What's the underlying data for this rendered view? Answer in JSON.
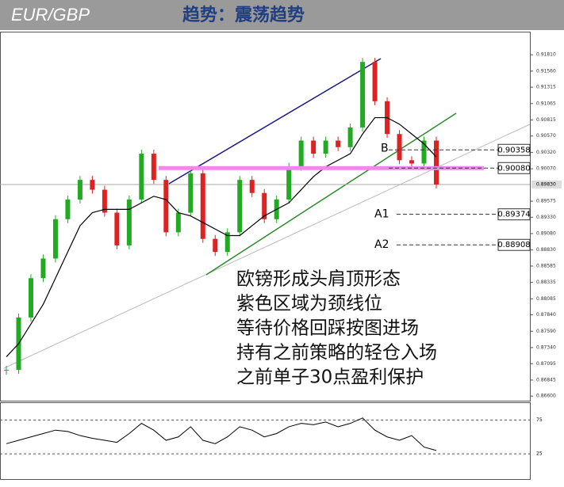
{
  "header": {
    "symbol": "EUR/GBP",
    "title": "趋势：震荡趋势"
  },
  "chart_data": {
    "type": "candlestick",
    "closes": [
      0.87,
      0.878,
      0.884,
      0.887,
      0.893,
      0.896,
      0.899,
      0.8975,
      0.894,
      0.889,
      0.896,
      0.903,
      0.899,
      0.891,
      0.894,
      0.9,
      0.89,
      0.888,
      0.891,
      0.899,
      0.897,
      0.893,
      0.896,
      0.901,
      0.905,
      0.903,
      0.905,
      0.904,
      0.907,
      0.917,
      0.911,
      0.906,
      0.902,
      0.9015,
      0.905,
      0.8983
    ],
    "moving_average": [
      0.872,
      0.874,
      0.877,
      0.88,
      0.884,
      0.888,
      0.892,
      0.894,
      0.8945,
      0.8945,
      0.8945,
      0.8955,
      0.8965,
      0.896,
      0.894,
      0.8935,
      0.8925,
      0.8915,
      0.8905,
      0.8905,
      0.892,
      0.8935,
      0.8945,
      0.8955,
      0.8975,
      0.8995,
      0.901,
      0.902,
      0.903,
      0.906,
      0.9085,
      0.9085,
      0.9075,
      0.906,
      0.9045,
      0.9025
    ],
    "up_color": "#22aa22",
    "down_color": "#dd2222",
    "ma_color": "#000000",
    "ylim": [
      0.8653,
      0.9215
    ],
    "yticks": [
      {
        "value": 0.9181,
        "label": "0.91810"
      },
      {
        "value": 0.9156,
        "label": "0.91560"
      },
      0.91315,
      0.91065,
      0.90815,
      {
        "value": 0.9057,
        "label": "0.90570"
      },
      {
        "value": 0.9032,
        "label": "0.90320"
      },
      {
        "value": 0.9007,
        "label": "0.90070"
      },
      0.89575,
      {
        "value": 0.8933,
        "label": "0.89330"
      },
      {
        "value": 0.8908,
        "label": "0.89080"
      },
      {
        "value": 0.8883,
        "label": "0.88830"
      },
      0.88585,
      0.88335,
      0.88085,
      {
        "value": 0.8784,
        "label": "0.87840"
      },
      {
        "value": 0.8759,
        "label": "0.87590"
      },
      {
        "value": 0.8734,
        "label": "0.87340"
      },
      0.87095,
      0.86845,
      {
        "value": 0.866,
        "label": "0.86600"
      }
    ],
    "current_price": {
      "value": 0.8983,
      "label": "0.89830"
    },
    "levels": [
      {
        "name": "B",
        "value": 0.90358
      },
      {
        "value": 0.9008,
        "label": "0.90080",
        "color": "#ee88ee"
      },
      {
        "name": "A1",
        "value": 0.89374
      },
      {
        "name": "A2",
        "value": 0.88908
      }
    ],
    "annotation": [
      "欧镑形成头肩顶形态",
      "紫色区域为颈线位",
      "等待价格回踩按图进场",
      "持有之前策略的轻仓入场",
      "之前单子30点盈利保护"
    ],
    "oscillator": {
      "values": [
        40,
        45,
        50,
        55,
        60,
        58,
        52,
        48,
        45,
        42,
        55,
        70,
        60,
        45,
        50,
        65,
        45,
        40,
        50,
        65,
        60,
        50,
        55,
        65,
        70,
        68,
        72,
        65,
        70,
        78,
        60,
        50,
        45,
        52,
        35,
        30
      ],
      "ylim": [
        0,
        100
      ],
      "yticks": [
        75,
        25
      ]
    }
  }
}
